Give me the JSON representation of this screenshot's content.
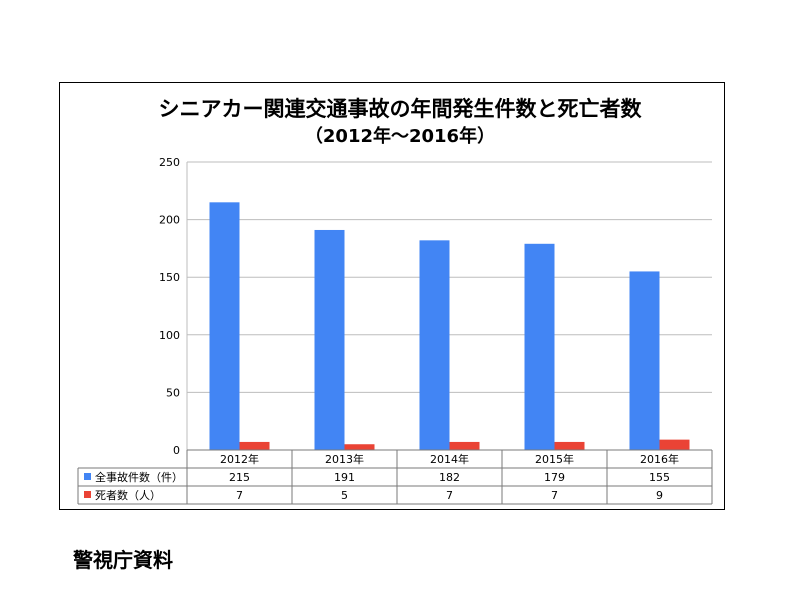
{
  "chart_data": {
    "type": "bar",
    "title": "シニアカー関連交通事故の年間発生件数と死亡者数",
    "subtitle": "（2012年～2016年）",
    "categories": [
      "2012年",
      "2013年",
      "2014年",
      "2015年",
      "2016年"
    ],
    "series": [
      {
        "name": "全事故件数（件）",
        "color": "#4285f4",
        "values": [
          215,
          191,
          182,
          179,
          155
        ]
      },
      {
        "name": "死者数（人）",
        "color": "#ea4335",
        "values": [
          7,
          5,
          7,
          7,
          9
        ]
      }
    ],
    "ylim": [
      0,
      250
    ],
    "yticks": [
      0,
      50,
      100,
      150,
      200,
      250
    ],
    "grid": true,
    "legend": "data-table"
  },
  "source": "警視庁資料"
}
